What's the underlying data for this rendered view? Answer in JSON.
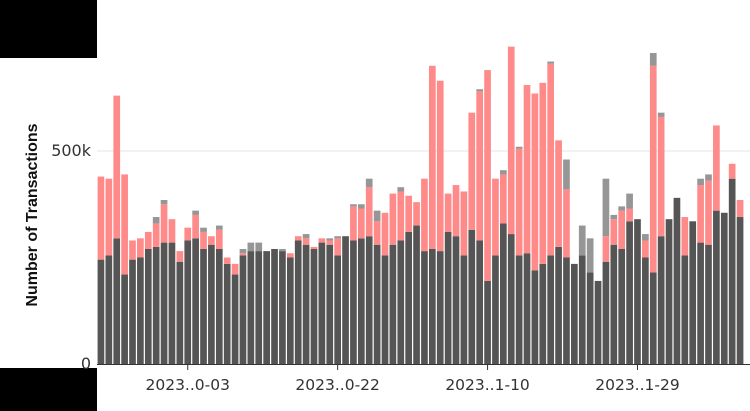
{
  "chart_data": {
    "type": "bar",
    "stacked": true,
    "ylabel": "Number of Transactions",
    "y_ticks": [
      {
        "value": 0,
        "label": "0"
      },
      {
        "value": 500000,
        "label": "500k"
      }
    ],
    "x_ticks": [
      {
        "index": 11,
        "label": "2023..0-03"
      },
      {
        "index": 30,
        "label": "2023..0-22"
      },
      {
        "index": 49,
        "label": "2023..1-10"
      },
      {
        "index": 68,
        "label": "2023..1-29"
      }
    ],
    "ylim": [
      0,
      850000
    ],
    "grid": true,
    "colors": {
      "bottom": "#555555",
      "middle": "#ff8a8a",
      "top": "#969696"
    },
    "series": [
      {
        "key": "bottom",
        "values": [
          245000,
          255000,
          295000,
          210000,
          245000,
          250000,
          270000,
          275000,
          285000,
          285000,
          240000,
          290000,
          295000,
          270000,
          280000,
          270000,
          235000,
          210000,
          255000,
          265000,
          265000,
          265000,
          270000,
          265000,
          250000,
          290000,
          280000,
          270000,
          285000,
          280000,
          255000,
          300000,
          290000,
          295000,
          300000,
          280000,
          255000,
          280000,
          290000,
          310000,
          325000,
          265000,
          270000,
          265000,
          310000,
          300000,
          255000,
          315000,
          290000,
          195000,
          255000,
          330000,
          305000,
          255000,
          260000,
          220000,
          235000,
          255000,
          275000,
          250000,
          235000,
          255000,
          215000,
          195000,
          240000,
          280000,
          270000,
          335000,
          340000,
          250000,
          215000,
          300000,
          340000,
          390000,
          255000,
          335000,
          285000,
          280000,
          360000,
          355000,
          435000,
          345000
        ]
      },
      {
        "key": "middle",
        "values": [
          195000,
          180000,
          335000,
          235000,
          45000,
          45000,
          40000,
          55000,
          90000,
          55000,
          25000,
          30000,
          55000,
          40000,
          20000,
          45000,
          15000,
          25000,
          5000,
          0,
          0,
          0,
          0,
          0,
          10000,
          10000,
          15000,
          5000,
          10000,
          10000,
          40000,
          0,
          80000,
          70000,
          115000,
          55000,
          100000,
          120000,
          115000,
          85000,
          55000,
          170000,
          430000,
          400000,
          90000,
          120000,
          150000,
          275000,
          350000,
          495000,
          180000,
          115000,
          440000,
          250000,
          395000,
          415000,
          425000,
          450000,
          250000,
          160000,
          0,
          0,
          0,
          0,
          60000,
          60000,
          90000,
          30000,
          0,
          40000,
          485000,
          280000,
          0,
          0,
          90000,
          0,
          135000,
          150000,
          200000,
          0,
          35000,
          40000
        ]
      },
      {
        "key": "top",
        "values": [
          0,
          0,
          0,
          0,
          0,
          0,
          0,
          15000,
          10000,
          0,
          0,
          0,
          10000,
          10000,
          0,
          10000,
          0,
          0,
          10000,
          20000,
          20000,
          0,
          0,
          5000,
          0,
          0,
          10000,
          0,
          0,
          5000,
          5000,
          0,
          5000,
          10000,
          20000,
          25000,
          0,
          0,
          10000,
          0,
          0,
          0,
          0,
          0,
          0,
          0,
          0,
          0,
          5000,
          0,
          0,
          10000,
          0,
          5000,
          0,
          0,
          0,
          5000,
          0,
          70000,
          0,
          70000,
          80000,
          0,
          135000,
          10000,
          10000,
          35000,
          0,
          15000,
          30000,
          10000,
          0,
          0,
          0,
          0,
          15000,
          15000,
          0,
          0,
          0,
          0
        ]
      }
    ]
  }
}
